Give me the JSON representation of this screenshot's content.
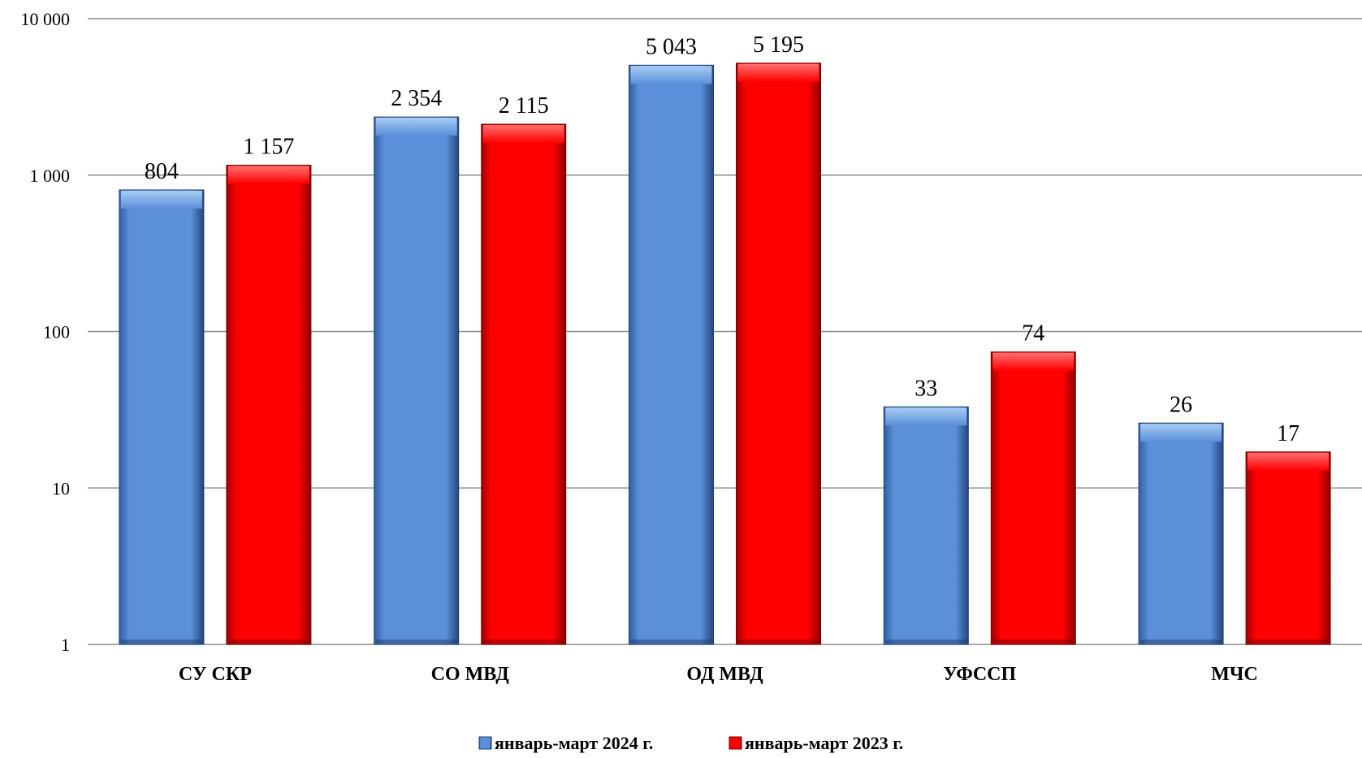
{
  "chart_data": {
    "type": "bar",
    "y_scale": "log",
    "ylim": [
      1,
      10000
    ],
    "y_ticks": [
      1,
      10,
      100,
      1000,
      10000
    ],
    "y_tick_labels": [
      "1",
      "10",
      "100",
      "1 000",
      "10 000"
    ],
    "grid": true,
    "legend_position": "bottom",
    "categories": [
      "СУ СКР",
      "СО МВД",
      "ОД МВД",
      "УФССП",
      "МЧС"
    ],
    "series": [
      {
        "name": "январь-март 2024 г.",
        "color": "#5b8fd9",
        "values": [
          804,
          2354,
          5043,
          33,
          26
        ],
        "labels": [
          "804",
          "2 354",
          "5 043",
          "33",
          "26"
        ]
      },
      {
        "name": "январь-март 2023 г.",
        "color": "#ff0000",
        "values": [
          1157,
          2115,
          5195,
          74,
          17
        ],
        "labels": [
          "1 157",
          "2 115",
          "5 195",
          "74",
          "17"
        ]
      }
    ]
  }
}
